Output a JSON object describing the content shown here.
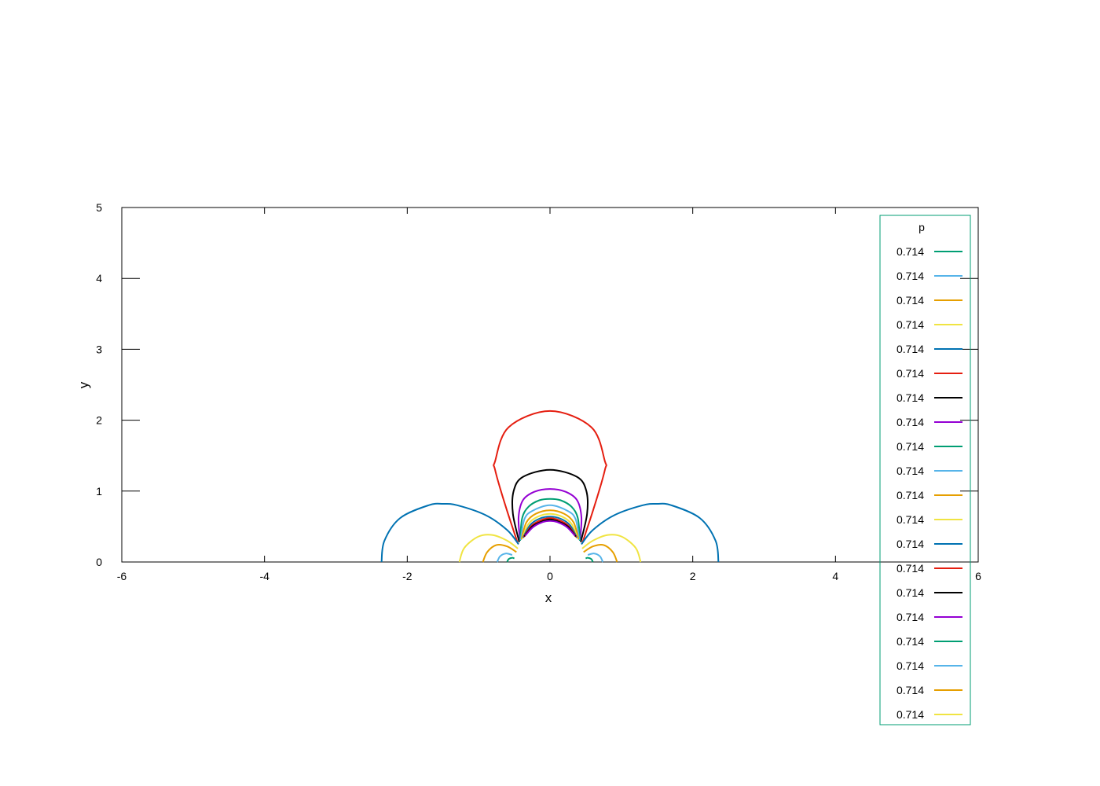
{
  "chart_data": {
    "type": "line",
    "title": "",
    "xlabel": "x",
    "ylabel": "y",
    "xlim": [
      -6,
      6
    ],
    "ylim": [
      0,
      5
    ],
    "xticks": [
      "-6",
      "-4",
      "-2",
      "0",
      "2",
      "4",
      "6"
    ],
    "yticks": [
      "0",
      "1",
      "2",
      "3",
      "4",
      "5"
    ],
    "grid": false,
    "legend": {
      "title": "p",
      "placement": "top-right, extending below plot",
      "entries": [
        {
          "label": "0.714",
          "color": "#009e73"
        },
        {
          "label": "0.714",
          "color": "#56b4e9"
        },
        {
          "label": "0.714",
          "color": "#e69f00"
        },
        {
          "label": "0.714",
          "color": "#f0e442"
        },
        {
          "label": "0.714",
          "color": "#0072b2"
        },
        {
          "label": "0.714",
          "color": "#e51e10"
        },
        {
          "label": "0.714",
          "color": "#000000"
        },
        {
          "label": "0.714",
          "color": "#9400d3"
        },
        {
          "label": "0.714",
          "color": "#009e73"
        },
        {
          "label": "0.714",
          "color": "#56b4e9"
        },
        {
          "label": "0.714",
          "color": "#e69f00"
        },
        {
          "label": "0.714",
          "color": "#f0e442"
        },
        {
          "label": "0.714",
          "color": "#0072b2"
        },
        {
          "label": "0.714",
          "color": "#e51e10"
        },
        {
          "label": "0.714",
          "color": "#000000"
        },
        {
          "label": "0.714",
          "color": "#9400d3"
        },
        {
          "label": "0.714",
          "color": "#009e73"
        },
        {
          "label": "0.714",
          "color": "#56b4e9"
        },
        {
          "label": "0.714",
          "color": "#e69f00"
        },
        {
          "label": "0.714",
          "color": "#f0e442"
        }
      ]
    },
    "series": [
      {
        "kind": "top-lobe",
        "color": "#e51e10",
        "x": [
          -0.45,
          -0.62,
          -0.77,
          -0.77,
          -0.58,
          0.0,
          0.58,
          0.77,
          0.77,
          0.62,
          0.45
        ],
        "y": [
          0.26,
          0.78,
          1.3,
          1.42,
          1.9,
          2.13,
          1.9,
          1.42,
          1.3,
          0.78,
          0.26
        ]
      },
      {
        "kind": "top-lobe",
        "color": "#000000",
        "x": [
          -0.43,
          -0.52,
          -0.51,
          -0.38,
          0.0,
          0.38,
          0.51,
          0.52,
          0.43
        ],
        "y": [
          0.28,
          0.68,
          1.0,
          1.2,
          1.3,
          1.2,
          1.0,
          0.68,
          0.28
        ]
      },
      {
        "kind": "top-lobe",
        "color": "#9400d3",
        "x": [
          -0.42,
          -0.44,
          -0.38,
          -0.22,
          0.0,
          0.22,
          0.38,
          0.44,
          0.42
        ],
        "y": [
          0.3,
          0.63,
          0.87,
          0.99,
          1.03,
          0.99,
          0.87,
          0.63,
          0.3
        ]
      },
      {
        "kind": "top-lobe",
        "color": "#009e73",
        "x": [
          -0.42,
          -0.39,
          -0.3,
          -0.15,
          0.0,
          0.15,
          0.3,
          0.39,
          0.42
        ],
        "y": [
          0.3,
          0.62,
          0.78,
          0.87,
          0.89,
          0.87,
          0.78,
          0.62,
          0.3
        ]
      },
      {
        "kind": "top-lobe",
        "color": "#56b4e9",
        "x": [
          -0.41,
          -0.36,
          -0.25,
          0.0,
          0.25,
          0.36,
          0.41
        ],
        "y": [
          0.31,
          0.6,
          0.72,
          0.8,
          0.72,
          0.6,
          0.31
        ]
      },
      {
        "kind": "top-lobe",
        "color": "#e69f00",
        "x": [
          -0.4,
          -0.33,
          -0.2,
          0.0,
          0.2,
          0.33,
          0.4
        ],
        "y": [
          0.32,
          0.56,
          0.68,
          0.73,
          0.68,
          0.56,
          0.32
        ]
      },
      {
        "kind": "top-lobe",
        "color": "#f0e442",
        "x": [
          -0.39,
          -0.3,
          -0.17,
          0.0,
          0.17,
          0.3,
          0.39
        ],
        "y": [
          0.33,
          0.54,
          0.64,
          0.68,
          0.64,
          0.54,
          0.33
        ]
      },
      {
        "kind": "top-lobe",
        "color": "#0072b2",
        "x": [
          -0.38,
          -0.28,
          -0.15,
          0.0,
          0.15,
          0.28,
          0.38
        ],
        "y": [
          0.34,
          0.52,
          0.61,
          0.64,
          0.61,
          0.52,
          0.34
        ]
      },
      {
        "kind": "top-lobe",
        "color": "#e51e10",
        "x": [
          -0.37,
          -0.26,
          -0.13,
          0.0,
          0.13,
          0.26,
          0.37
        ],
        "y": [
          0.35,
          0.51,
          0.59,
          0.62,
          0.59,
          0.51,
          0.35
        ]
      },
      {
        "kind": "top-lobe",
        "color": "#000000",
        "x": [
          -0.36,
          -0.25,
          -0.12,
          0.0,
          0.12,
          0.25,
          0.36
        ],
        "y": [
          0.36,
          0.5,
          0.57,
          0.6,
          0.57,
          0.5,
          0.36
        ]
      },
      {
        "kind": "top-lobe",
        "color": "#9400d3",
        "x": [
          -0.35,
          -0.24,
          -0.11,
          0.0,
          0.11,
          0.24,
          0.35
        ],
        "y": [
          0.37,
          0.49,
          0.56,
          0.58,
          0.56,
          0.49,
          0.37
        ]
      },
      {
        "kind": "side-lobe",
        "color": "#0072b2",
        "x": [
          -2.36,
          -2.32,
          -2.1,
          -1.7,
          -1.5,
          -1.3,
          -0.9,
          -0.6,
          -0.44
        ],
        "y": [
          0.0,
          0.3,
          0.62,
          0.8,
          0.82,
          0.8,
          0.66,
          0.45,
          0.25
        ]
      },
      {
        "kind": "side-lobe",
        "color": "#0072b2",
        "x": [
          2.36,
          2.32,
          2.1,
          1.7,
          1.5,
          1.3,
          0.9,
          0.6,
          0.44
        ],
        "y": [
          0.0,
          0.3,
          0.62,
          0.8,
          0.82,
          0.8,
          0.66,
          0.45,
          0.25
        ]
      },
      {
        "kind": "side-lobe",
        "color": "#f0e442",
        "x": [
          -1.27,
          -1.2,
          -1.0,
          -0.8,
          -0.6,
          -0.45
        ],
        "y": [
          0.0,
          0.2,
          0.36,
          0.38,
          0.3,
          0.19
        ]
      },
      {
        "kind": "side-lobe",
        "color": "#f0e442",
        "x": [
          1.27,
          1.2,
          1.0,
          0.8,
          0.6,
          0.45
        ],
        "y": [
          0.0,
          0.2,
          0.36,
          0.38,
          0.3,
          0.19
        ]
      },
      {
        "kind": "side-lobe",
        "color": "#e69f00",
        "x": [
          -0.94,
          -0.88,
          -0.75,
          -0.6,
          -0.47
        ],
        "y": [
          0.0,
          0.14,
          0.24,
          0.22,
          0.14
        ]
      },
      {
        "kind": "side-lobe",
        "color": "#e69f00",
        "x": [
          0.94,
          0.88,
          0.75,
          0.6,
          0.47
        ],
        "y": [
          0.0,
          0.14,
          0.24,
          0.22,
          0.14
        ]
      },
      {
        "kind": "side-lobe",
        "color": "#56b4e9",
        "x": [
          -0.74,
          -0.7,
          -0.62,
          -0.53
        ],
        "y": [
          0.0,
          0.08,
          0.12,
          0.1
        ]
      },
      {
        "kind": "side-lobe",
        "color": "#56b4e9",
        "x": [
          0.74,
          0.7,
          0.62,
          0.53
        ],
        "y": [
          0.0,
          0.08,
          0.12,
          0.1
        ]
      },
      {
        "kind": "side-lobe",
        "color": "#009e73",
        "x": [
          -0.6,
          -0.58,
          -0.53,
          -0.5
        ],
        "y": [
          0.0,
          0.04,
          0.06,
          0.05
        ]
      },
      {
        "kind": "side-lobe",
        "color": "#009e73",
        "x": [
          0.6,
          0.58,
          0.53,
          0.5
        ],
        "y": [
          0.0,
          0.04,
          0.06,
          0.05
        ]
      }
    ]
  }
}
